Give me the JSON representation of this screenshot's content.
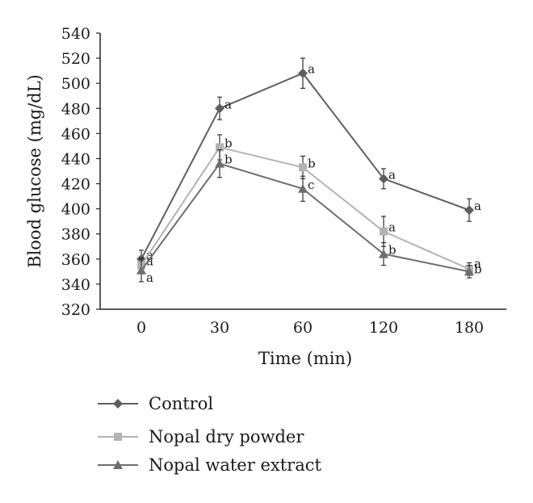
{
  "chart_data": {
    "type": "line",
    "xlabel": "Time (min)",
    "ylabel": "Blood glucose (mg/dL)",
    "categories": [
      "0",
      "30",
      "60",
      "120",
      "180"
    ],
    "ylim": [
      320,
      540
    ],
    "yticks": [
      320,
      340,
      360,
      380,
      400,
      420,
      440,
      460,
      480,
      500,
      520,
      540
    ],
    "grid": false,
    "legend_position": "bottom",
    "series": [
      {
        "name": "Control",
        "marker": "diamond",
        "color": "#5f5f5f",
        "values": [
          360,
          480,
          508,
          424,
          399
        ],
        "errors": [
          7,
          9,
          12,
          8,
          9
        ],
        "labels": [
          "a",
          "a",
          "a",
          "a",
          "a"
        ]
      },
      {
        "name": "Nopal dry powder",
        "marker": "square",
        "color": "#b3b3b3",
        "values": [
          355,
          449,
          433,
          382,
          352
        ],
        "errors": [
          6,
          10,
          9,
          12,
          5
        ],
        "labels": [
          "a",
          "b",
          "b",
          "a",
          "a"
        ]
      },
      {
        "name": "Nopal water extract",
        "marker": "triangle",
        "color": "#6e6e6e",
        "values": [
          351,
          436,
          416,
          364,
          350
        ],
        "errors": [
          9,
          11,
          10,
          9,
          5
        ],
        "labels": [
          "a",
          "b",
          "c",
          "b",
          "b"
        ]
      }
    ]
  }
}
